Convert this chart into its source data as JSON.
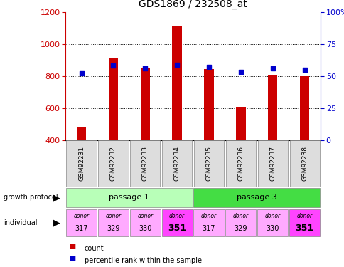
{
  "title": "GDS1869 / 232508_at",
  "categories": [
    "GSM92231",
    "GSM92232",
    "GSM92233",
    "GSM92234",
    "GSM92235",
    "GSM92236",
    "GSM92237",
    "GSM92238"
  ],
  "count_values": [
    480,
    910,
    855,
    1110,
    845,
    610,
    805,
    800
  ],
  "percentile_values": [
    52,
    58,
    56,
    59,
    57,
    53,
    56,
    55
  ],
  "ylim_left": [
    400,
    1200
  ],
  "ylim_right": [
    0,
    100
  ],
  "yticks_left": [
    400,
    600,
    800,
    1000,
    1200
  ],
  "yticks_right": [
    0,
    25,
    50,
    75,
    100
  ],
  "ytick_labels_right": [
    "0",
    "25",
    "50",
    "75",
    "100%"
  ],
  "bar_color": "#cc0000",
  "dot_color": "#0000cc",
  "left_axis_color": "#cc0000",
  "right_axis_color": "#0000cc",
  "growth_protocol_groups": [
    {
      "label": "passage 1",
      "start": 0,
      "end": 3,
      "color": "#b8ffb8"
    },
    {
      "label": "passage 3",
      "start": 4,
      "end": 7,
      "color": "#44dd44"
    }
  ],
  "individual_labels": [
    "317",
    "329",
    "330",
    "351",
    "317",
    "329",
    "330",
    "351"
  ],
  "individual_colors": [
    "#ffaaff",
    "#ffaaff",
    "#ffaaff",
    "#ff44ff",
    "#ffaaff",
    "#ffaaff",
    "#ffaaff",
    "#ff44ff"
  ],
  "individual_bold": [
    false,
    false,
    false,
    true,
    false,
    false,
    false,
    true
  ],
  "legend_items": [
    {
      "label": "count",
      "color": "#cc0000"
    },
    {
      "label": "percentile rank within the sample",
      "color": "#0000cc"
    }
  ]
}
